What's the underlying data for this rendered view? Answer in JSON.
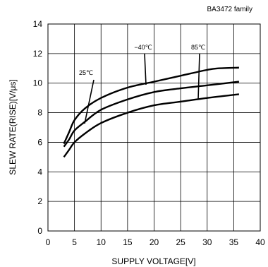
{
  "chart_data": {
    "type": "line",
    "title": "BA3472 family",
    "xlabel": "SUPPLY VOLTAGE[V]",
    "ylabel": "SLEW RATE(RISE)[V/μs]",
    "xlim": [
      0,
      40
    ],
    "ylim": [
      0,
      14
    ],
    "xticks": [
      0,
      5,
      10,
      15,
      20,
      25,
      30,
      35,
      40
    ],
    "yticks": [
      0,
      2,
      4,
      6,
      8,
      10,
      12,
      14
    ],
    "grid": true,
    "series": [
      {
        "name": "-40℃",
        "x": [
          3,
          4,
          5,
          7,
          10,
          15,
          20,
          25,
          30,
          32,
          36
        ],
        "y": [
          5.9,
          6.7,
          7.5,
          8.3,
          9.0,
          9.7,
          10.1,
          10.5,
          10.9,
          11.0,
          11.05
        ]
      },
      {
        "name": "25℃",
        "x": [
          3,
          4,
          5,
          7,
          10,
          15,
          20,
          25,
          30,
          36
        ],
        "y": [
          5.7,
          6.2,
          6.8,
          7.4,
          8.2,
          8.9,
          9.4,
          9.65,
          9.85,
          10.1
        ]
      },
      {
        "name": "85℃",
        "x": [
          3,
          4,
          5,
          7,
          10,
          15,
          20,
          25,
          30,
          36
        ],
        "y": [
          5.0,
          5.5,
          6.0,
          6.6,
          7.3,
          8.0,
          8.5,
          8.75,
          9.0,
          9.25
        ]
      }
    ],
    "annotations": [
      {
        "text": "25℃",
        "series": 1
      },
      {
        "text": "−40℃",
        "series": 0
      },
      {
        "text": "85℃",
        "series": 2
      }
    ]
  }
}
